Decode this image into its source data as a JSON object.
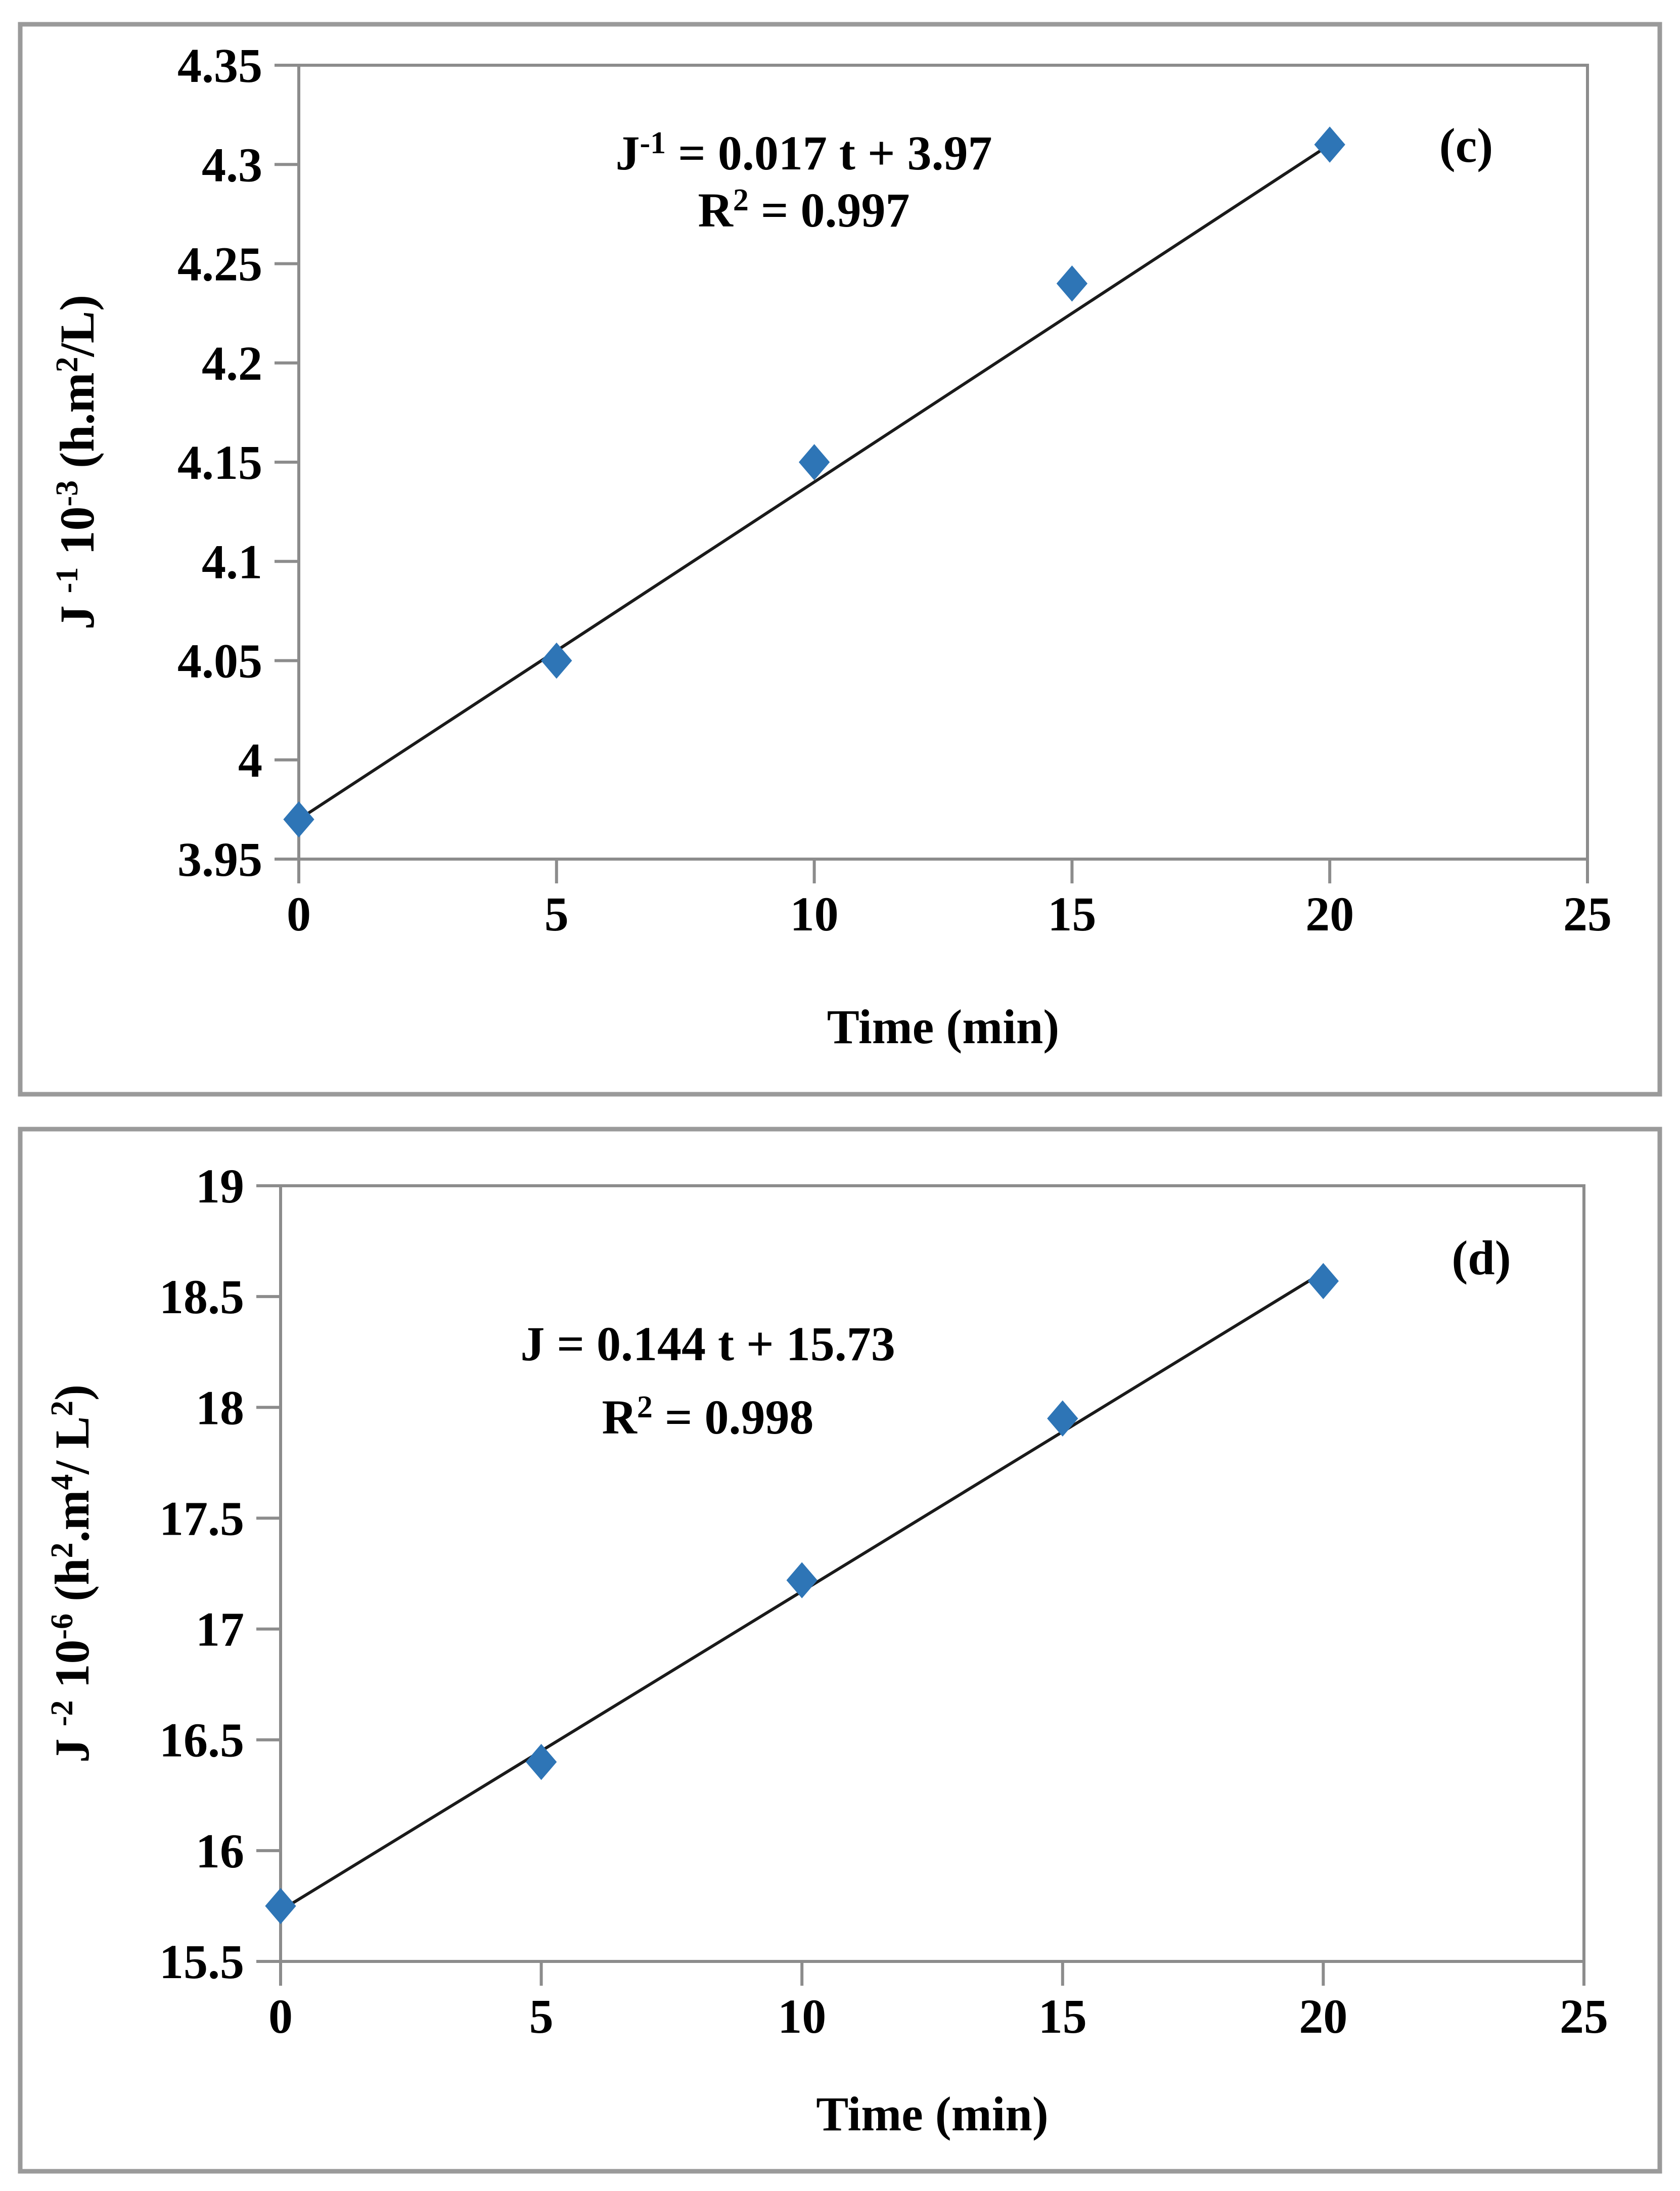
{
  "figure_background": "#ffffff",
  "colors": {
    "marker": "#2E75B6",
    "trendline": "#1a1a1a",
    "axis_gray": "#8c8c8c",
    "panel_border": "#9a9a9a",
    "text": "#000000"
  },
  "chart_data": [
    {
      "type": "scatter",
      "panel_label": "(c)",
      "title": "",
      "xlabel": "Time (min)",
      "ylabel": "J -1 10-3 (h.m2/L)",
      "ylabel_segments": [
        {
          "t": "J "
        },
        {
          "t": "-1",
          "sup": true
        },
        {
          "t": " 10"
        },
        {
          "t": "-3",
          "sup": true
        },
        {
          "t": " (h.m"
        },
        {
          "t": "2",
          "sup": true
        },
        {
          "t": "/L)"
        }
      ],
      "equation_text": [
        "J-1 = 0.017 t + 3.97",
        "R2 = 0.997"
      ],
      "equation_segments": [
        [
          {
            "t": "J"
          },
          {
            "t": "-1",
            "sup": true
          },
          {
            "t": " = 0.017 t + 3.97"
          }
        ],
        [
          {
            "t": "R"
          },
          {
            "t": "2",
            "sup": true
          },
          {
            "t": " = 0.997"
          }
        ]
      ],
      "x": [
        0,
        5,
        10,
        15,
        20
      ],
      "y": [
        3.97,
        4.05,
        4.15,
        4.24,
        4.31
      ],
      "trendline": {
        "slope": 0.017,
        "intercept": 3.97,
        "x_start": 0,
        "x_end": 20
      },
      "xlim": [
        0,
        25
      ],
      "ylim": [
        3.95,
        4.35
      ],
      "x_ticks": [
        0,
        5,
        10,
        15,
        20,
        25
      ],
      "x_tick_labels": [
        "0",
        "5",
        "10",
        "15",
        "20",
        "25"
      ],
      "y_ticks": [
        3.95,
        4.0,
        4.05,
        4.1,
        4.15,
        4.2,
        4.25,
        4.3,
        4.35
      ],
      "y_tick_labels": [
        "3.95",
        "4",
        "4.05",
        "4.1",
        "4.15",
        "4.2",
        "4.25",
        "4.3",
        "4.35"
      ],
      "grid": false,
      "legend": "none",
      "marker_shape": "diamond"
    },
    {
      "type": "scatter",
      "panel_label": "(d)",
      "title": "",
      "xlabel": "Time (min)",
      "ylabel": "J -2 10-6 (h2.m4/ L2)",
      "ylabel_segments": [
        {
          "t": "J "
        },
        {
          "t": "-2",
          "sup": true
        },
        {
          "t": " 10"
        },
        {
          "t": "-6",
          "sup": true
        },
        {
          "t": "  (h"
        },
        {
          "t": "2",
          "sup": true
        },
        {
          "t": ".m"
        },
        {
          "t": "4",
          "sup": true
        },
        {
          "t": "/ L"
        },
        {
          "t": "2",
          "sup": true
        },
        {
          "t": ")"
        }
      ],
      "equation_text": [
        "J = 0.144 t  + 15.73",
        "R2 = 0.998"
      ],
      "equation_segments": [
        [
          {
            "t": "J = 0.144 t  + 15.73"
          }
        ],
        [
          {
            "t": "R"
          },
          {
            "t": "2",
            "sup": true
          },
          {
            "t": " = 0.998"
          }
        ]
      ],
      "x": [
        0,
        5,
        10,
        15,
        20
      ],
      "y": [
        15.75,
        16.4,
        17.22,
        17.95,
        18.57
      ],
      "trendline": {
        "slope": 0.144,
        "intercept": 15.73,
        "x_start": 0,
        "x_end": 20
      },
      "xlim": [
        0,
        25
      ],
      "ylim": [
        15.5,
        19
      ],
      "x_ticks": [
        0,
        5,
        10,
        15,
        20,
        25
      ],
      "x_tick_labels": [
        "0",
        "5",
        "10",
        "15",
        "20",
        "25"
      ],
      "y_ticks": [
        15.5,
        16,
        16.5,
        17,
        17.5,
        18,
        18.5,
        19
      ],
      "y_tick_labels": [
        "15.5",
        "16",
        "16.5",
        "17",
        "17.5",
        "18",
        "18.5",
        "19"
      ],
      "grid": false,
      "legend": "none",
      "marker_shape": "diamond"
    }
  ]
}
